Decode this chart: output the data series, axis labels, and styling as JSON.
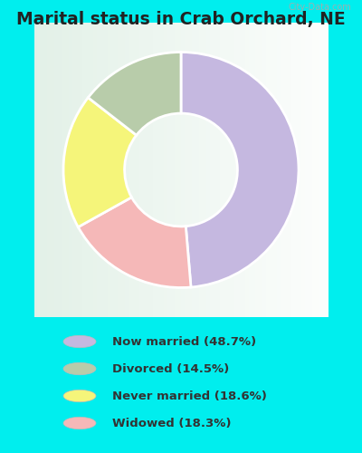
{
  "title": "Marital status in Crab Orchard, NE",
  "values": [
    48.7,
    18.3,
    18.6,
    14.5
  ],
  "colors": [
    "#c5b8e0",
    "#f5b8b8",
    "#f5f57a",
    "#b8ccaa"
  ],
  "legend_labels": [
    "Now married (48.7%)",
    "Divorced (14.5%)",
    "Never married (18.6%)",
    "Widowed (18.3%)"
  ],
  "legend_colors": [
    "#c5b8e0",
    "#b8ccaa",
    "#f5f57a",
    "#f5b8b8"
  ],
  "background_color": "#00eeee",
  "chart_bg_top": "#d8ede0",
  "chart_bg_bottom": "#e8f5ee",
  "watermark": "City-Data.com",
  "title_fontsize": 13.5,
  "donut_width": 0.52,
  "startangle": 90
}
